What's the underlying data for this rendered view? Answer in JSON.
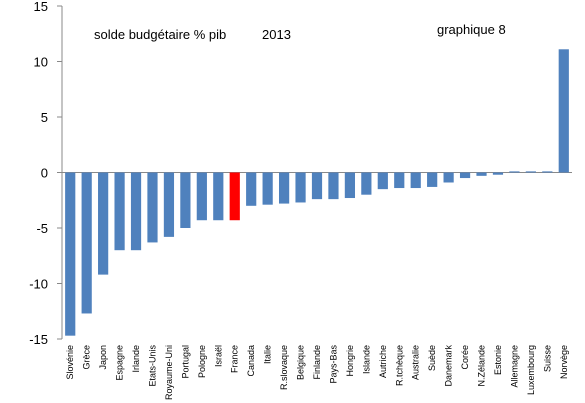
{
  "chart_data": {
    "type": "bar",
    "title": "solde budgétaire % pib",
    "year": "2013",
    "annotation": "graphique 8",
    "xlabel": "",
    "ylabel": "",
    "ylim": [
      -15,
      15
    ],
    "yticks": [
      15,
      10,
      5,
      0,
      -5,
      -10,
      -15
    ],
    "grid": false,
    "legend": "none",
    "colors": {
      "default": "#4f81bd",
      "highlight": "#ff0000"
    },
    "highlight": "France",
    "categories": [
      "Slovénie",
      "Grèce",
      "Japon",
      "Espagne",
      "Irlande",
      "Etats-Unis",
      "Royaume-Uni",
      "Portugal",
      "Pologne",
      "Israël",
      "France",
      "Canada",
      "Italie",
      "R.slovaque",
      "Belgique",
      "Finlande",
      "Pays-Bas",
      "Hongrie",
      "Islande",
      "Autriche",
      "R.tchèque",
      "Australie",
      "Suède",
      "Danemark",
      "Corée",
      "N.Zélande",
      "Estonie",
      "Allemagne",
      "Luxembourg",
      "Suisse",
      "Norvège"
    ],
    "values": [
      -14.7,
      -12.7,
      -9.2,
      -7.0,
      -7.0,
      -6.3,
      -5.8,
      -5.0,
      -4.3,
      -4.3,
      -4.3,
      -3.0,
      -2.9,
      -2.8,
      -2.7,
      -2.4,
      -2.4,
      -2.3,
      -2.0,
      -1.5,
      -1.4,
      -1.4,
      -1.3,
      -0.9,
      -0.5,
      -0.3,
      -0.2,
      0.1,
      0.1,
      0.1,
      11.1
    ]
  }
}
